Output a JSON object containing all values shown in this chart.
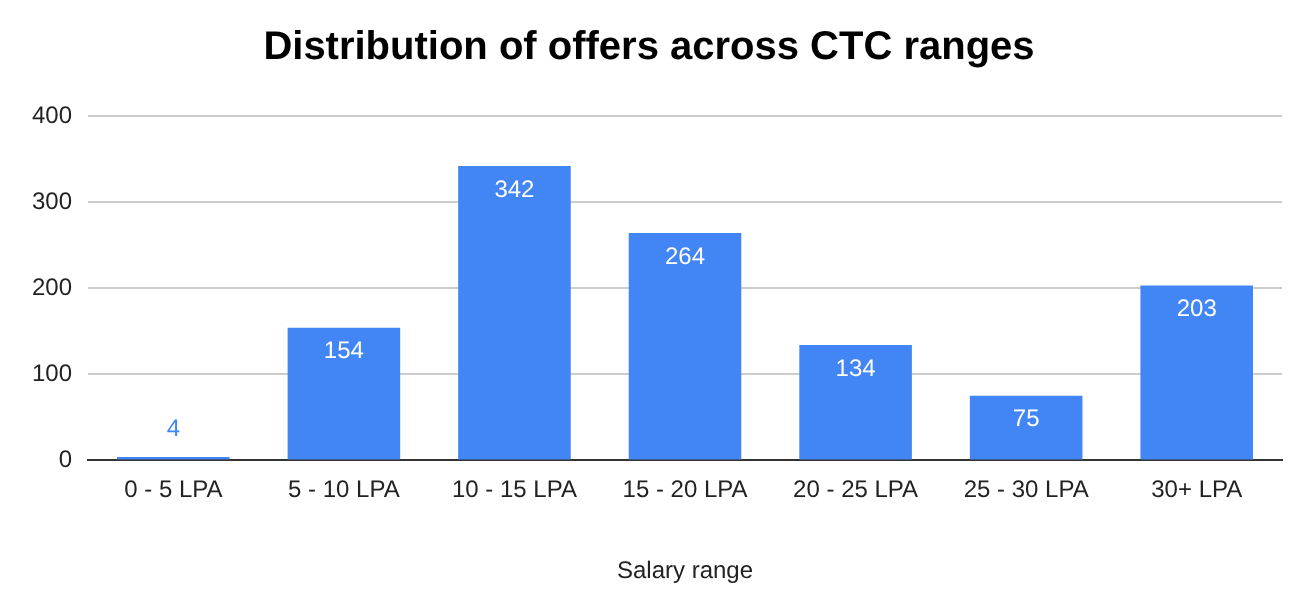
{
  "chart_data": {
    "type": "bar",
    "title": "Distribution of offers across CTC ranges",
    "xlabel": "Salary range",
    "categories": [
      "0 - 5 LPA",
      "5 - 10 LPA",
      "10 - 15 LPA",
      "15 - 20 LPA",
      "20 - 25 LPA",
      "25 - 30 LPA",
      "30+ LPA"
    ],
    "values": [
      4,
      154,
      342,
      264,
      134,
      75,
      203
    ],
    "color": "#4285f4",
    "ylim": [
      0,
      400
    ],
    "yticks": [
      0,
      100,
      200,
      300,
      400
    ],
    "grid": "y",
    "data_labels": true
  }
}
